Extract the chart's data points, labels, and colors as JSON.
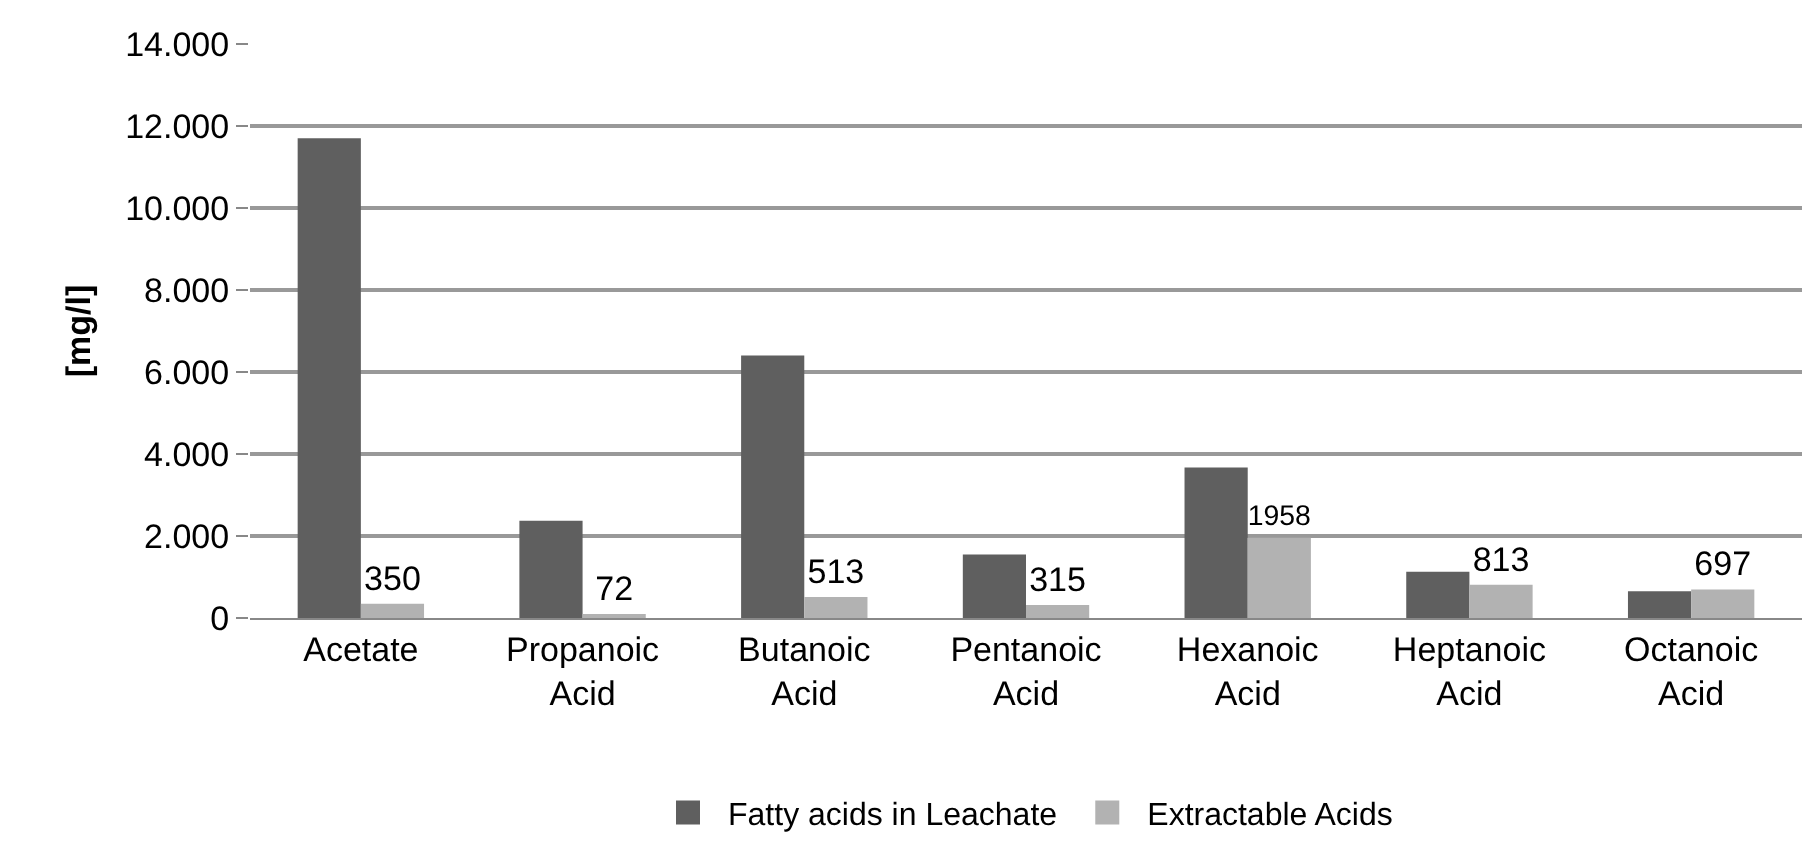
{
  "chart_data": {
    "type": "bar",
    "ylabel": "[mg/l]",
    "categories": [
      "Acetate",
      "Propanoic Acid",
      "Butanoic Acid",
      "Pentanoic Acid",
      "Hexanoic Acid",
      "Heptanoic Acid",
      "Octanoic Acid"
    ],
    "series": [
      {
        "name": "Fatty acids in Leachate",
        "color": "#5f5f5f",
        "values": [
          11700,
          2370,
          6400,
          1550,
          3670,
          1130,
          650
        ]
      },
      {
        "name": "Extractable Acids",
        "color": "#b2b2b2",
        "values": [
          350,
          72,
          513,
          315,
          1958,
          813,
          697
        ],
        "value_labels": [
          "350",
          "72",
          "513",
          "315",
          "1958",
          "813",
          "697"
        ]
      }
    ],
    "ylim": [
      0,
      14000
    ],
    "yticks": [
      0,
      {
        "value": 2000,
        "label": "2.000"
      },
      {
        "value": 4000,
        "label": "4.000"
      },
      {
        "value": 6000,
        "label": "6.000"
      },
      {
        "value": 8000,
        "label": "8.000"
      },
      {
        "value": 10000,
        "label": "10.000"
      },
      {
        "value": 12000,
        "label": "12.000"
      },
      {
        "value": 14000,
        "label": "14.000"
      }
    ],
    "grid": "y",
    "legend": "bottom"
  }
}
